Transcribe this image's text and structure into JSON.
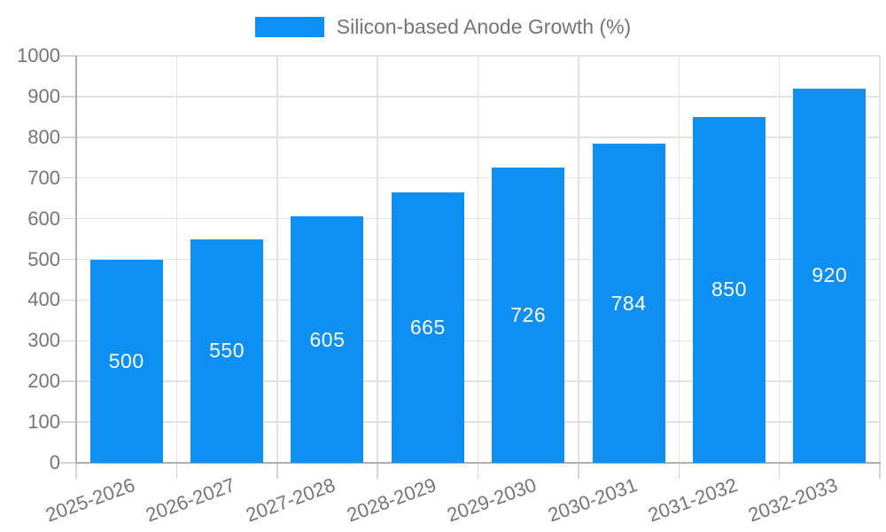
{
  "chart_data": {
    "type": "bar",
    "title": "",
    "legend": "Silicon-based Anode Growth (%)",
    "legend_position": "top-center",
    "categories": [
      "2025-2026",
      "2026-2027",
      "2027-2028",
      "2028-2029",
      "2029-2030",
      "2030-2031",
      "2031-2032",
      "2032-2033"
    ],
    "values": [
      500,
      550,
      605,
      665,
      726,
      784,
      850,
      920
    ],
    "value_labels": [
      "500",
      "550",
      "605",
      "665",
      "726",
      "784",
      "850",
      "920"
    ],
    "xlabel": "",
    "ylabel": "",
    "ylim": [
      0,
      1000
    ],
    "yticks": [
      0,
      100,
      200,
      300,
      400,
      500,
      600,
      700,
      800,
      900,
      1000
    ],
    "grid": "on",
    "x_label_rotation_deg": -20,
    "colors": {
      "bar": "#0d90f2",
      "value_text": "#ffffff",
      "axis_text": "#757575",
      "gridline": "#e2e2e2",
      "tick": "#d4d4d4",
      "axis_line": "#b0b0b0",
      "background": "#ffffff"
    }
  }
}
